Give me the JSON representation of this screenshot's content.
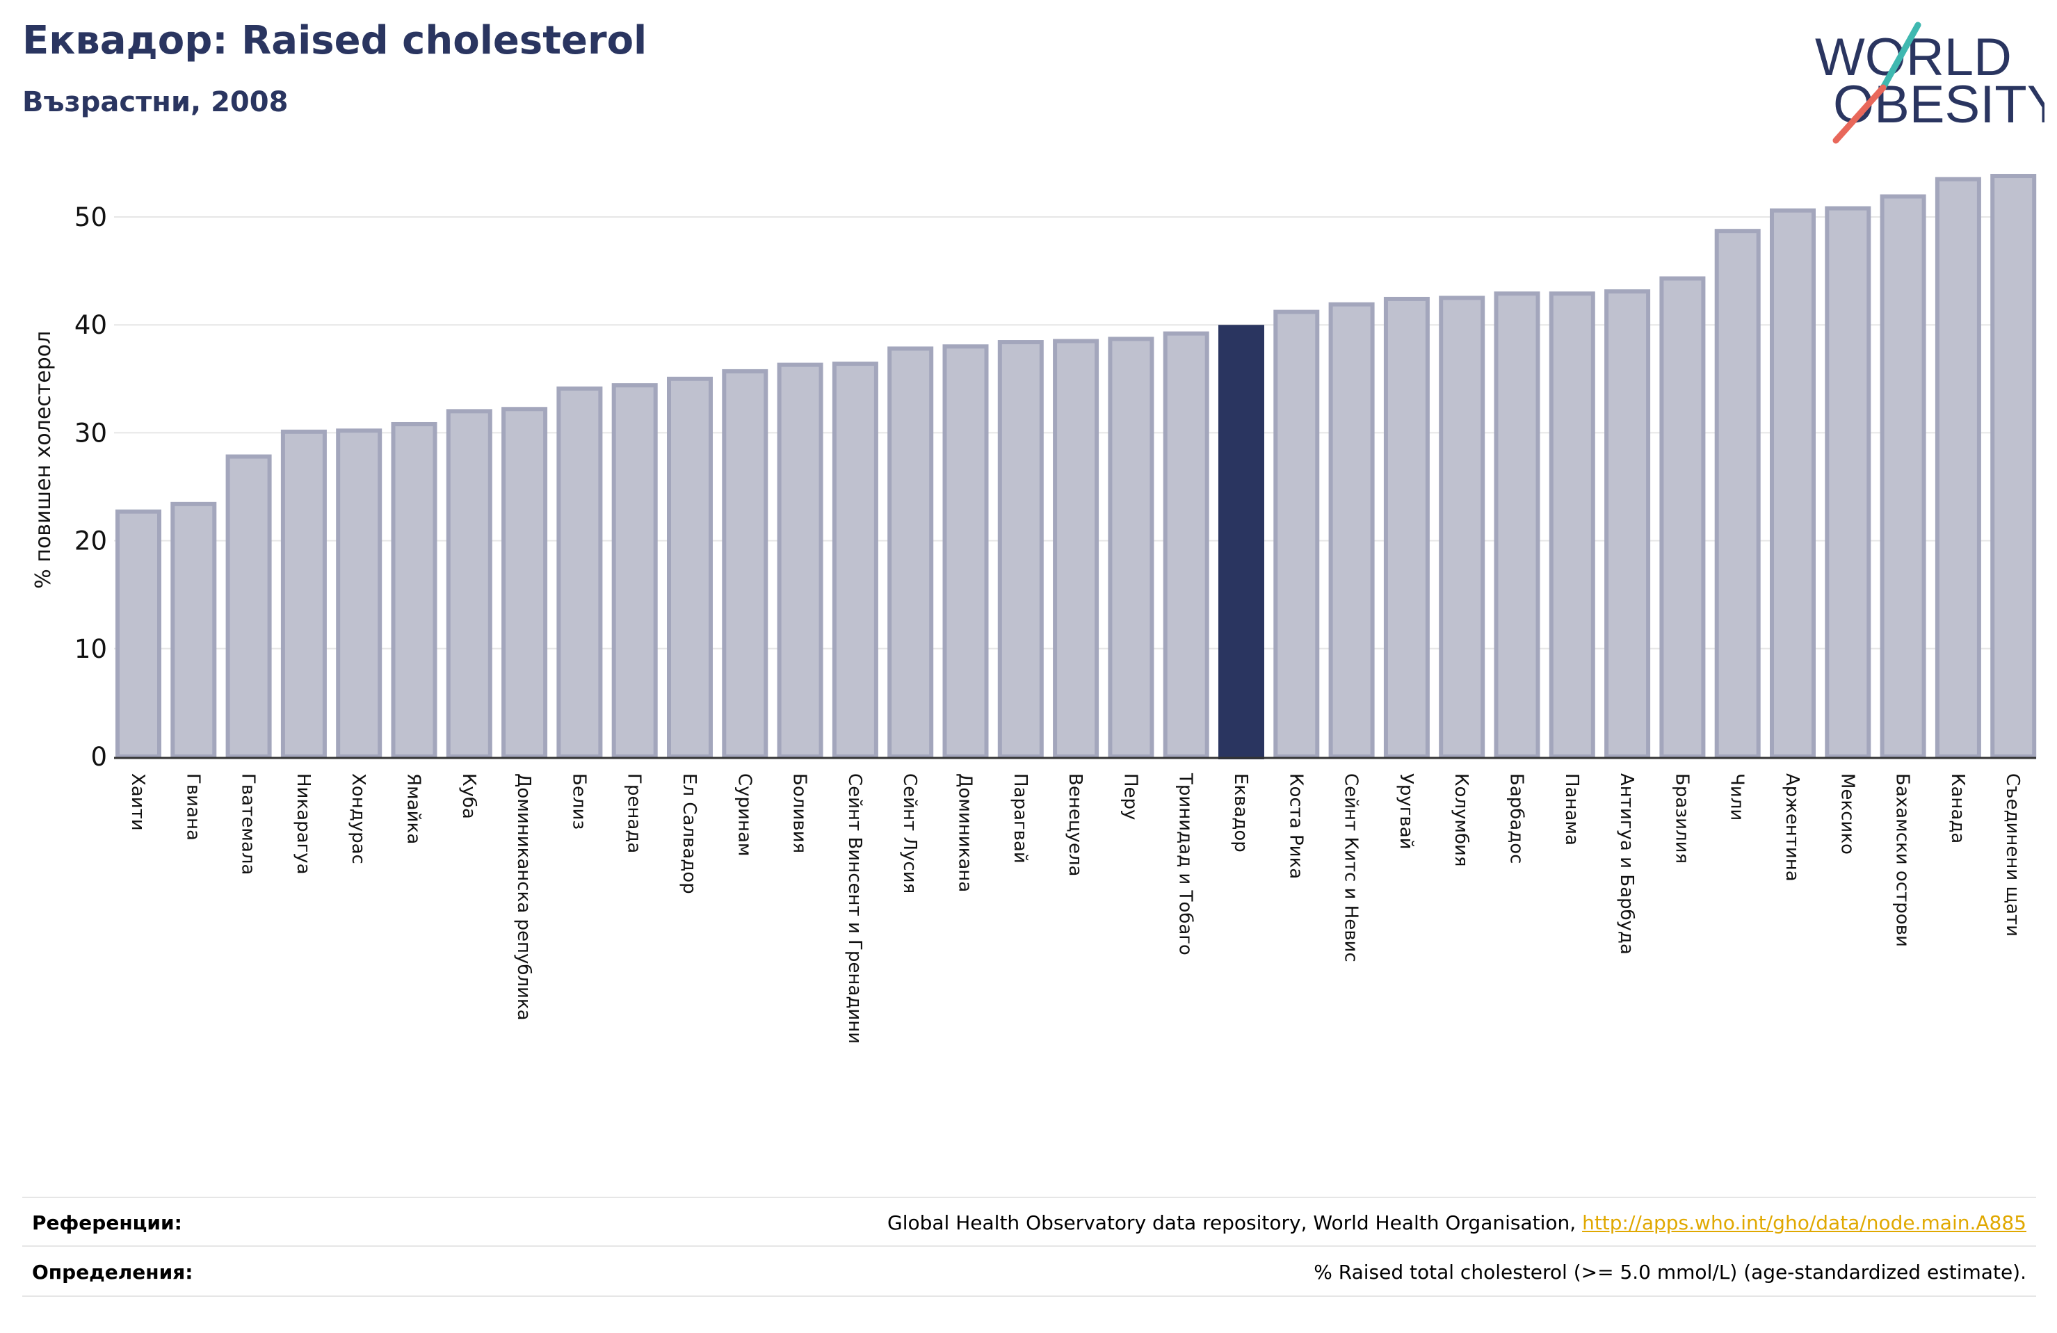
{
  "header": {
    "title": "Еквадор: Raised cholesterol",
    "subtitle": "Възрастни, 2008"
  },
  "logo": {
    "line1": "WORLD",
    "line2": "OBESITY"
  },
  "chart_data": {
    "type": "bar",
    "title": "Еквадор: Raised cholesterol",
    "subtitle": "Възрастни, 2008",
    "ylabel": "% повишен холестерол",
    "xlabel": "",
    "ylim": [
      0,
      55
    ],
    "yticks": [
      0,
      10,
      20,
      30,
      40,
      50
    ],
    "grid": true,
    "highlight": "Еквадор",
    "colors": {
      "bar": "#bfc1cf",
      "bar_edge": "#a3a6bc",
      "highlight": "#2a3560",
      "grid": "#e6e6e6"
    },
    "categories": [
      "Хаити",
      "Гвиана",
      "Гватемала",
      "Никарагуа",
      "Хондурас",
      "Ямайка",
      "Куба",
      "Доминиканска република",
      "Белиз",
      "Гренада",
      "Ел Салвадор",
      "Суринам",
      "Боливия",
      "Сейнт Винсент и Гренадини",
      "Сейнт Лусия",
      "Доминикана",
      "Парагвай",
      "Венецуела",
      "Перу",
      "Тринидад и Тобаго",
      "Еквадор",
      "Коста Рика",
      "Сейнт Китс и Невис",
      "Уругвай",
      "Колумбия",
      "Барбадос",
      "Панама",
      "Антигуа и Барбуда",
      "Бразилия",
      "Чили",
      "Аржентина",
      "Мексико",
      "Бахамски острови",
      "Канада",
      "Съединени щати"
    ],
    "values": [
      22.7,
      23.4,
      27.8,
      30.1,
      30.2,
      30.8,
      32.0,
      32.2,
      34.1,
      34.4,
      35.0,
      35.7,
      36.3,
      36.4,
      37.8,
      38.0,
      38.4,
      38.5,
      38.7,
      39.2,
      40.0,
      41.2,
      41.9,
      42.4,
      42.5,
      42.9,
      42.9,
      43.1,
      44.3,
      48.7,
      50.6,
      50.8,
      51.9,
      53.5,
      53.8
    ]
  },
  "footer": {
    "references_label": "Референции:",
    "references_text": "Global Health Observatory data repository, World Health Organisation, ",
    "references_link": "http://apps.who.int/gho/data/node.main.A885",
    "definitions_label": "Определения:",
    "definitions_text": "% Raised total cholesterol (>= 5.0 mmol/L) (age-standardized estimate)."
  }
}
